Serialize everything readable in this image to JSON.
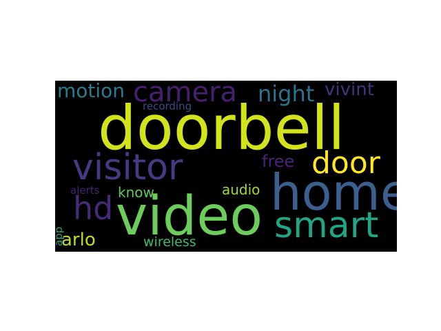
{
  "wordcloud": {
    "background": "#000000",
    "words": [
      {
        "key": "doorbell",
        "text": "doorbell",
        "color": "#d2e21b"
      },
      {
        "key": "visitor",
        "text": "visitor",
        "color": "#463a84"
      },
      {
        "key": "home",
        "text": "home",
        "color": "#3b5f8e"
      },
      {
        "key": "video",
        "text": "video",
        "color": "#6ccd5a"
      },
      {
        "key": "door",
        "text": "door",
        "color": "#fde725"
      },
      {
        "key": "smart",
        "text": "smart",
        "color": "#21a685"
      },
      {
        "key": "camera",
        "text": "camera",
        "color": "#481f70"
      },
      {
        "key": "hd",
        "text": "hd",
        "color": "#472a79"
      },
      {
        "key": "night",
        "text": "night",
        "color": "#2c728e"
      },
      {
        "key": "motion",
        "text": "motion",
        "color": "#2a7b8e"
      },
      {
        "key": "vivint",
        "text": "vivint",
        "color": "#44337e"
      },
      {
        "key": "free",
        "text": "free",
        "color": "#482475"
      },
      {
        "key": "arlo",
        "text": "arlo",
        "color": "#b8de29"
      },
      {
        "key": "know",
        "text": "know",
        "color": "#5ec962"
      },
      {
        "key": "audio",
        "text": "audio",
        "color": "#9fda3a"
      },
      {
        "key": "wireless",
        "text": "wireless",
        "color": "#3dbc74"
      },
      {
        "key": "recording",
        "text": "recording",
        "color": "#3e4989"
      },
      {
        "key": "alerts",
        "text": "alerts",
        "color": "#482173"
      },
      {
        "key": "app",
        "text": "app",
        "color": "#2ea37f"
      }
    ]
  }
}
